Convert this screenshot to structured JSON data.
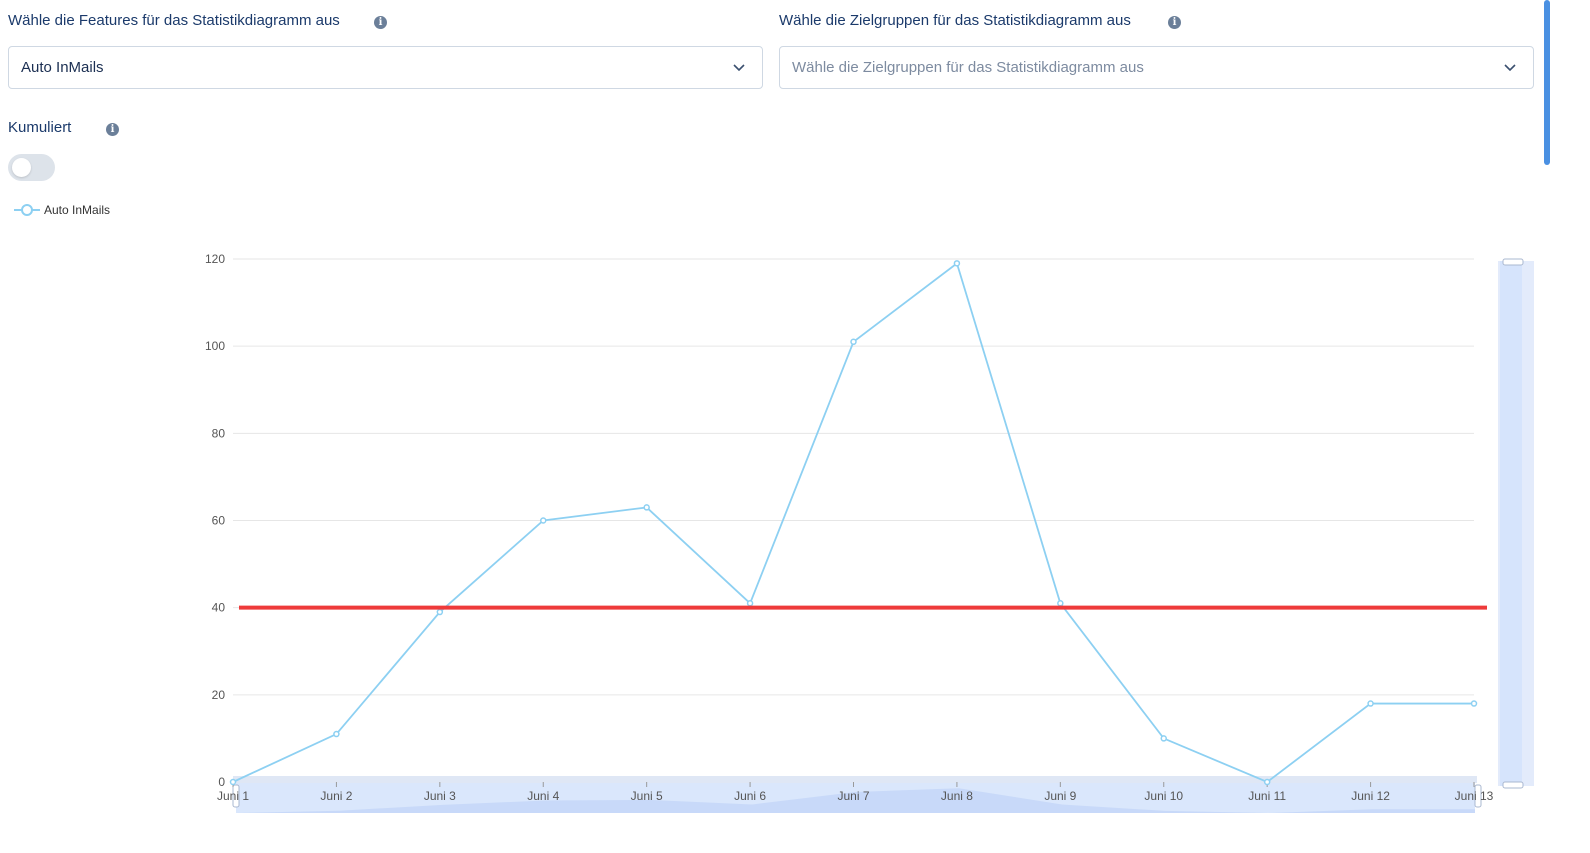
{
  "features": {
    "label": "Wähle die Features für das Statistikdiagramm aus",
    "value": "Auto InMails"
  },
  "audiences": {
    "label": "Wähle die Zielgruppen für das Statistikdiagramm aus",
    "placeholder": "Wähle die Zielgruppen für das Statistikdiagramm aus"
  },
  "cumulative": {
    "label": "Kumuliert",
    "enabled": false
  },
  "icons": {
    "info": "info-icon",
    "dropdown": "chevron-down-icon"
  },
  "colors": {
    "series": "#8dd0f2",
    "threshold": "#ee3a3a",
    "zoom": "#d6e4fc",
    "text": "#1b3a6b"
  },
  "chart_data": {
    "type": "line",
    "categories": [
      "Juni 1",
      "Juni 2",
      "Juni 3",
      "Juni 4",
      "Juni 5",
      "Juni 6",
      "Juni 7",
      "Juni 8",
      "Juni 9",
      "Juni 10",
      "Juni 11",
      "Juni 12",
      "Juni 13"
    ],
    "series": [
      {
        "name": "Auto InMails",
        "values": [
          0,
          11,
          39,
          60,
          63,
          41,
          101,
          119,
          41,
          10,
          0,
          18,
          18
        ]
      }
    ],
    "threshold": 40,
    "yticks": [
      0,
      20,
      40,
      60,
      80,
      100,
      120
    ],
    "ylim": [
      0,
      120
    ],
    "grid": true,
    "legend": "top-left",
    "x_zoom_slider": true,
    "y_zoom_slider": true
  }
}
